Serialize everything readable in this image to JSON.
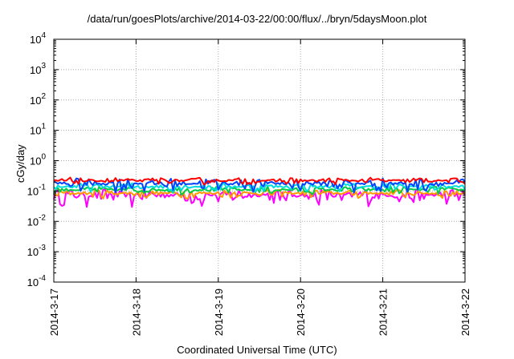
{
  "chart_data": {
    "type": "line",
    "title": "/data/run/goesPlots/archive/2014-03-22/00:00/flux/../bryn/5daysMoon.plot",
    "xlabel": "Coordinated Universal Time (UTC)",
    "ylabel": "cGy/day",
    "xlim": [
      "2014-3-17",
      "2014-3-22"
    ],
    "x_ticks": [
      "2014-3-17",
      "2014-3-18",
      "2014-3-19",
      "2014-3-20",
      "2014-3-21",
      "2014-3-22"
    ],
    "yscale": "log",
    "ylim": [
      0.0001,
      10000
    ],
    "y_ticks": [
      {
        "mantissa": "10",
        "exp": "-4",
        "value": 0.0001
      },
      {
        "mantissa": "10",
        "exp": "-3",
        "value": 0.001
      },
      {
        "mantissa": "10",
        "exp": "-2",
        "value": 0.01
      },
      {
        "mantissa": "10",
        "exp": "-1",
        "value": 0.1
      },
      {
        "mantissa": "10",
        "exp": "0",
        "value": 1
      },
      {
        "mantissa": "10",
        "exp": "1",
        "value": 10
      },
      {
        "mantissa": "10",
        "exp": "2",
        "value": 100
      },
      {
        "mantissa": "10",
        "exp": "3",
        "value": 1000
      },
      {
        "mantissa": "10",
        "exp": "4",
        "value": 10000
      }
    ],
    "grid": true,
    "series": [
      {
        "color": "#ff00ff",
        "base": 0.075,
        "spread": 0.045,
        "dips": [
          [
            0.08,
            0.03
          ],
          [
            0.19,
            0.03
          ],
          [
            0.36,
            0.032
          ],
          [
            0.4,
            0.045
          ],
          [
            0.55,
            0.05
          ],
          [
            0.62,
            0.055
          ],
          [
            0.7,
            0.05
          ],
          [
            0.84,
            0.045
          ],
          [
            0.9,
            0.055
          ],
          [
            0.96,
            0.06
          ]
        ]
      },
      {
        "color": "#ff9900",
        "base": 0.085,
        "spread": 0.03,
        "dips": []
      },
      {
        "color": "#00cc44",
        "base": 0.11,
        "spread": 0.035,
        "dips": []
      },
      {
        "color": "#00dddd",
        "base": 0.14,
        "spread": 0.05,
        "dips": []
      },
      {
        "color": "#0044ff",
        "base": 0.18,
        "spread": 0.09,
        "dips": [
          [
            0.15,
            0.09
          ],
          [
            0.22,
            0.1
          ],
          [
            0.4,
            0.11
          ],
          [
            0.73,
            0.09
          ],
          [
            0.86,
            0.095
          ]
        ]
      },
      {
        "color": "#ff0000",
        "base": 0.22,
        "spread": 0.06,
        "dips": []
      }
    ]
  }
}
